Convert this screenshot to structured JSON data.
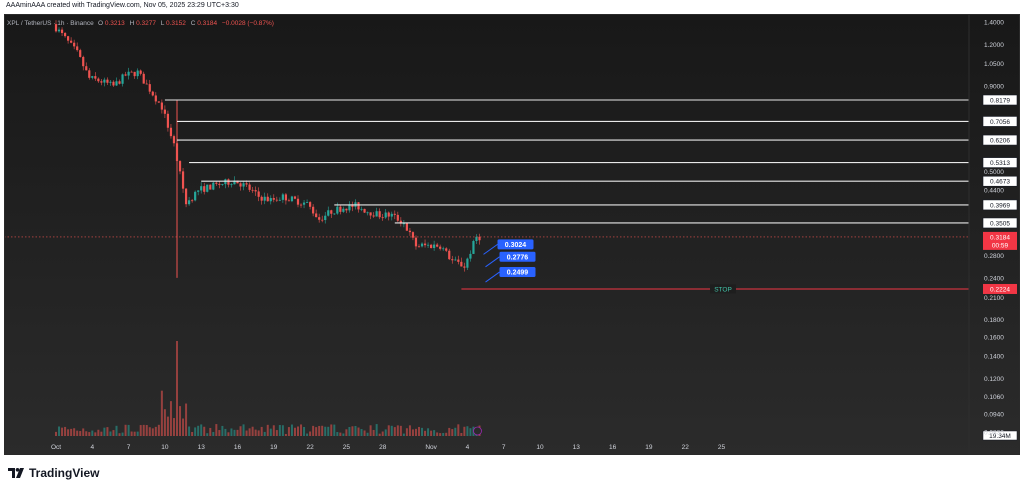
{
  "header": {
    "attribution": "AAAminAAA created with TradingView.com, Nov 05, 2025 23:29 UTC+3:30",
    "symbol_line": "XPL / TetherUS · 1h · Binance",
    "ohlc": {
      "open_label": "O",
      "open": "0.3213",
      "high_label": "H",
      "high": "0.3277",
      "low_label": "L",
      "low": "0.3152",
      "close_label": "C",
      "close": "0.3184",
      "change": "−0.0028 (−0.87%)"
    }
  },
  "footer": {
    "brand": "TradingView"
  },
  "chart_data": {
    "type": "candlestick",
    "title": "XPL / TetherUS · 1h · Binance",
    "y_scale": "log",
    "ylim": [
      0.083,
      1.4
    ],
    "y_ticks": [
      "1.4000",
      "1.2000",
      "1.0500",
      "0.9000",
      "0.8179",
      "0.7056",
      "0.6206",
      "0.5313",
      "0.5000",
      "0.4673",
      "0.4400",
      "0.3969",
      "0.3505",
      "0.3184",
      "0.2800",
      "0.2400",
      "0.2224",
      "0.2100",
      "0.1800",
      "0.1600",
      "0.1400",
      "0.1200",
      "0.1060",
      "0.0940",
      "0.0830"
    ],
    "x_ticks": [
      "Oct",
      "4",
      "7",
      "10",
      "13",
      "16",
      "19",
      "22",
      "25",
      "28",
      "Nov",
      "4",
      "7",
      "10",
      "13",
      "16",
      "19",
      "22",
      "25"
    ],
    "price_path": [
      {
        "d": "Oct 1",
        "p": 1.38
      },
      {
        "d": "Oct 2",
        "p": 1.25
      },
      {
        "d": "Oct 3",
        "p": 1.13
      },
      {
        "d": "Oct 4",
        "p": 0.95
      },
      {
        "d": "Oct 5",
        "p": 0.93
      },
      {
        "d": "Oct 6",
        "p": 0.9
      },
      {
        "d": "Oct 7",
        "p": 0.97
      },
      {
        "d": "Oct 8",
        "p": 0.99
      },
      {
        "d": "Oct 9",
        "p": 0.88
      },
      {
        "d": "Oct 10",
        "p": 0.78
      },
      {
        "d": "Oct 11",
        "p": 0.6
      },
      {
        "d": "Oct 12",
        "p": 0.4
      },
      {
        "d": "Oct 13",
        "p": 0.44
      },
      {
        "d": "Oct 14",
        "p": 0.45
      },
      {
        "d": "Oct 15",
        "p": 0.46
      },
      {
        "d": "Oct 16",
        "p": 0.47
      },
      {
        "d": "Oct 17",
        "p": 0.45
      },
      {
        "d": "Oct 18",
        "p": 0.42
      },
      {
        "d": "Oct 19",
        "p": 0.41
      },
      {
        "d": "Oct 20",
        "p": 0.42
      },
      {
        "d": "Oct 21",
        "p": 0.41
      },
      {
        "d": "Oct 22",
        "p": 0.4
      },
      {
        "d": "Oct 23",
        "p": 0.36
      },
      {
        "d": "Oct 24",
        "p": 0.38
      },
      {
        "d": "Oct 25",
        "p": 0.39
      },
      {
        "d": "Oct 26",
        "p": 0.395
      },
      {
        "d": "Oct 27",
        "p": 0.38
      },
      {
        "d": "Oct 28",
        "p": 0.37
      },
      {
        "d": "Oct 29",
        "p": 0.37
      },
      {
        "d": "Oct 30",
        "p": 0.35
      },
      {
        "d": "Oct 31",
        "p": 0.3
      },
      {
        "d": "Nov 1",
        "p": 0.3
      },
      {
        "d": "Nov 2",
        "p": 0.3
      },
      {
        "d": "Nov 3",
        "p": 0.27
      },
      {
        "d": "Nov 4",
        "p": 0.26
      },
      {
        "d": "Nov 5",
        "p": 0.3184
      }
    ],
    "spike_wicks": [
      {
        "d": "Oct 11",
        "high": 0.82,
        "low": 0.24
      }
    ],
    "horizontal_levels": [
      {
        "price": 0.8179,
        "label": "0.8179",
        "from": "Oct 10"
      },
      {
        "price": 0.7056,
        "label": "0.7056",
        "from": "Oct 11"
      },
      {
        "price": 0.6206,
        "label": "0.6206",
        "from": "Oct 11"
      },
      {
        "price": 0.5313,
        "label": "0.5313",
        "from": "Oct 12"
      },
      {
        "price": 0.4673,
        "label": "0.4673",
        "from": "Oct 13"
      },
      {
        "price": 0.3969,
        "label": "0.3969",
        "from": "Oct 24"
      },
      {
        "price": 0.3505,
        "label": "0.3505",
        "from": "Oct 29"
      }
    ],
    "stop_level": {
      "price": 0.2224,
      "label": "0.2224",
      "text": "STOP",
      "from": "Nov 4"
    },
    "current_price": {
      "price": 0.3184,
      "label": "0.3184",
      "countdown": "00:59"
    },
    "target_labels": [
      "0.3024",
      "0.2776",
      "0.2499"
    ],
    "target_prices": [
      0.3024,
      0.2776,
      0.2499
    ],
    "volume_label": "19.34M",
    "colors": {
      "background": "#1b1b1b",
      "up": "#26a69a",
      "down": "#ef5350",
      "level_line": "#e8e8e8",
      "stop_line": "#f23645",
      "stop_text": "#42c2a7",
      "target_box": "#2962ff",
      "axis_text": "#d1d4dc"
    }
  }
}
